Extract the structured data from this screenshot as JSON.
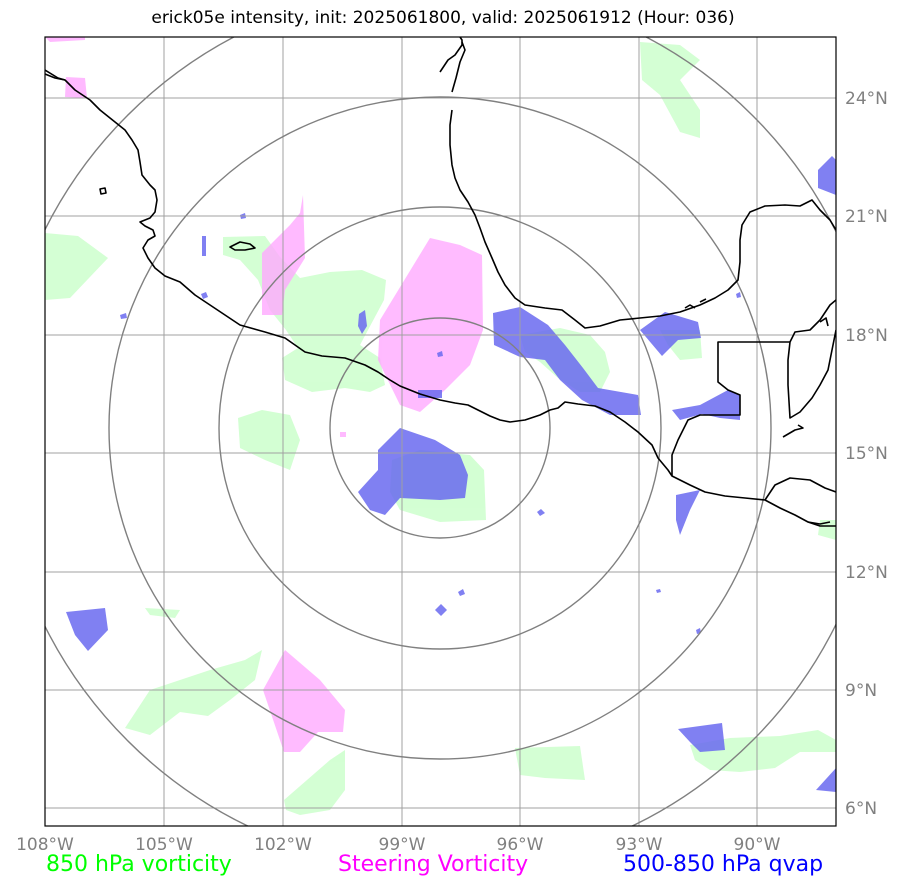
{
  "title": "erick05e intensity, init: 2025061800, valid: 2025061912 (Hour: 036)",
  "axes": {
    "lon_labels": [
      "108°W",
      "105°W",
      "102°W",
      "99°W",
      "96°W",
      "93°W",
      "90°W"
    ],
    "lat_labels": [
      "24°N",
      "21°N",
      "18°N",
      "15°N",
      "12°N",
      "9°N",
      "6°N"
    ]
  },
  "legend": {
    "vort850": "850 hPa vorticity",
    "steering": "Steering Vorticity",
    "qvap": "500-850 hPa qvap"
  },
  "colors": {
    "vort850": "#00ff00",
    "steering": "#ff00ff",
    "qvap": "#0000ff",
    "vort850_fill": "#ccffcc",
    "steering_fill": "#ffaaff",
    "qvap_fill": "#6a6af0",
    "grid": "#a0a0a0",
    "range_rings": "#808080",
    "coastline": "#000000"
  },
  "map_extent": {
    "lon_min": -108,
    "lon_max": -88,
    "lat_min": 5.6,
    "lat_max": 25.7
  },
  "storm_center": {
    "lon": -98,
    "lat": 15.6
  },
  "range_rings_deg": [
    3,
    6,
    9,
    12
  ]
}
